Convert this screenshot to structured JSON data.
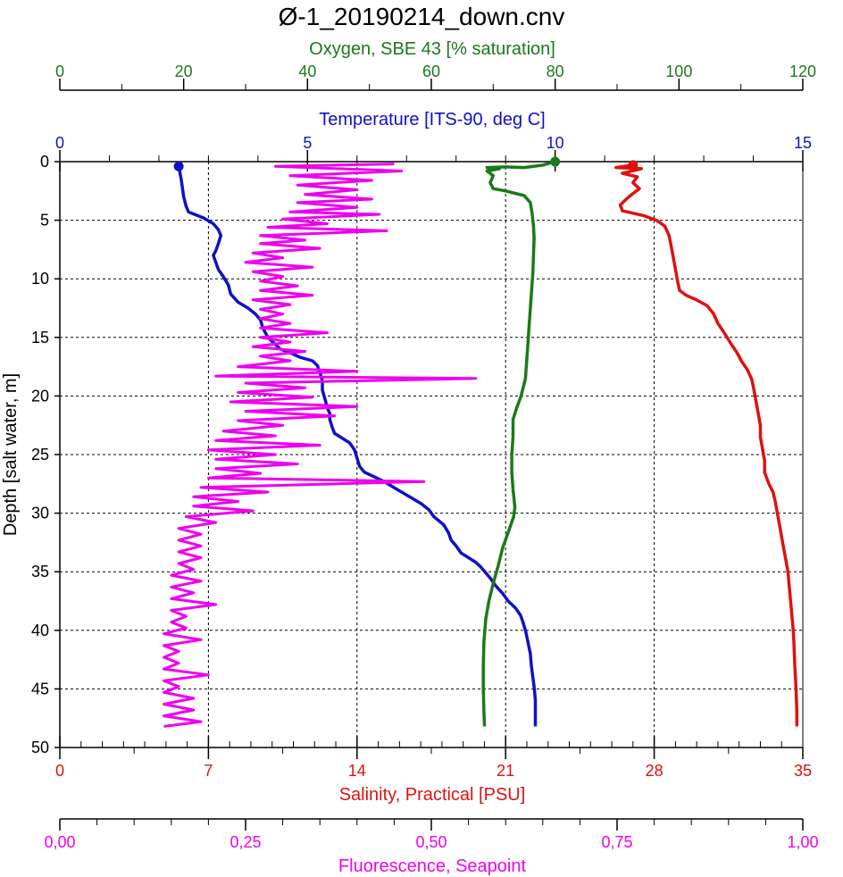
{
  "chart_data": {
    "type": "line",
    "title": "Ø-1_20190214_down.cnv",
    "y_axis": {
      "label": "Depth [salt water, m]",
      "range": [
        0,
        50
      ],
      "ticks": [
        "0",
        "5",
        "10",
        "15",
        "20",
        "25",
        "30",
        "35",
        "40",
        "45",
        "50"
      ],
      "inverted": true
    },
    "grid": true,
    "axes": {
      "oxygen": {
        "label": "Oxygen, SBE 43 [% saturation]",
        "range": [
          0,
          120
        ],
        "ticks": [
          "0",
          "20",
          "40",
          "60",
          "80",
          "100",
          "120"
        ],
        "color": "#1a7a1a",
        "position": "top"
      },
      "temperature": {
        "label": "Temperature [ITS-90, deg C]",
        "range": [
          0,
          15
        ],
        "ticks": [
          "0",
          "5",
          "10",
          "15"
        ],
        "color": "#1010c8",
        "position": "top"
      },
      "salinity": {
        "label": "Salinity, Practical [PSU]",
        "range": [
          0,
          35
        ],
        "ticks": [
          "0",
          "7",
          "14",
          "21",
          "28",
          "35"
        ],
        "color": "#e01010",
        "position": "bottom"
      },
      "fluorescence": {
        "label": "Fluorescence, Seapoint",
        "range": [
          0,
          1
        ],
        "ticks": [
          "0,00",
          "0,25",
          "0,50",
          "0,75",
          "1,00"
        ],
        "color": "#ee00ee",
        "position": "bottom"
      }
    },
    "series": [
      {
        "name": "Temperature [ITS-90, deg C]",
        "axis": "temperature",
        "color": "#1010c8",
        "points": [
          [
            2.4,
            0.4
          ],
          [
            2.45,
            1.5
          ],
          [
            2.5,
            3
          ],
          [
            2.55,
            3.8
          ],
          [
            2.6,
            4.3
          ],
          [
            2.9,
            4.8
          ],
          [
            3.1,
            5.3
          ],
          [
            3.2,
            5.8
          ],
          [
            3.25,
            6.3
          ],
          [
            3.2,
            7
          ],
          [
            3.15,
            7.6
          ],
          [
            3.1,
            8
          ],
          [
            3.15,
            8.6
          ],
          [
            3.2,
            9.2
          ],
          [
            3.3,
            9.8
          ],
          [
            3.4,
            10.5
          ],
          [
            3.45,
            11.3
          ],
          [
            3.6,
            12
          ],
          [
            3.8,
            12.5
          ],
          [
            3.95,
            13
          ],
          [
            4.05,
            13.5
          ],
          [
            4.1,
            14.2
          ],
          [
            4.2,
            15
          ],
          [
            4.35,
            15.6
          ],
          [
            4.45,
            16
          ],
          [
            4.65,
            16.3
          ],
          [
            4.85,
            16.7
          ],
          [
            5.1,
            17
          ],
          [
            5.2,
            17.4
          ],
          [
            5.25,
            18
          ],
          [
            5.3,
            18.7
          ],
          [
            5.3,
            19.5
          ],
          [
            5.35,
            20.2
          ],
          [
            5.4,
            21
          ],
          [
            5.45,
            21.5
          ],
          [
            5.45,
            22
          ],
          [
            5.5,
            22.7
          ],
          [
            5.55,
            23.2
          ],
          [
            5.7,
            23.6
          ],
          [
            5.85,
            24
          ],
          [
            5.95,
            24.6
          ],
          [
            6.0,
            25.3
          ],
          [
            6.05,
            26
          ],
          [
            6.15,
            26.5
          ],
          [
            6.35,
            26.9
          ],
          [
            6.55,
            27.3
          ],
          [
            6.7,
            27.7
          ],
          [
            6.9,
            28.2
          ],
          [
            7.1,
            28.7
          ],
          [
            7.3,
            29.2
          ],
          [
            7.45,
            29.7
          ],
          [
            7.55,
            30.3
          ],
          [
            7.75,
            31
          ],
          [
            7.85,
            31.7
          ],
          [
            7.9,
            32.3
          ],
          [
            8.0,
            32.8
          ],
          [
            8.1,
            33.4
          ],
          [
            8.25,
            33.8
          ],
          [
            8.4,
            34.2
          ],
          [
            8.5,
            34.6
          ],
          [
            8.6,
            35.1
          ],
          [
            8.7,
            35.6
          ],
          [
            8.8,
            36.2
          ],
          [
            8.95,
            36.9
          ],
          [
            9.05,
            37.5
          ],
          [
            9.2,
            38.1
          ],
          [
            9.3,
            38.7
          ],
          [
            9.35,
            39.3
          ],
          [
            9.4,
            40
          ],
          [
            9.45,
            41
          ],
          [
            9.5,
            42
          ],
          [
            9.52,
            43
          ],
          [
            9.55,
            44
          ],
          [
            9.58,
            45
          ],
          [
            9.6,
            46
          ],
          [
            9.6,
            47
          ],
          [
            9.6,
            48.2
          ]
        ]
      },
      {
        "name": "Oxygen, SBE 43 [% saturation]",
        "axis": "oxygen",
        "color": "#1a7a1a",
        "points": [
          [
            80,
            0
          ],
          [
            78,
            0.3
          ],
          [
            75,
            0.5
          ],
          [
            72,
            0.45
          ],
          [
            69,
            0.5
          ],
          [
            71,
            0.6
          ],
          [
            69,
            0.8
          ],
          [
            70,
            1.2
          ],
          [
            69.5,
            1.8
          ],
          [
            70,
            2.3
          ],
          [
            72,
            2.5
          ],
          [
            75,
            2.9
          ],
          [
            76,
            3.5
          ],
          [
            76.3,
            4.5
          ],
          [
            76.5,
            5.5
          ],
          [
            76.6,
            6.5
          ],
          [
            76.5,
            8
          ],
          [
            76.4,
            9.5
          ],
          [
            76.2,
            11
          ],
          [
            76,
            12.5
          ],
          [
            75.8,
            14
          ],
          [
            75.6,
            15.5
          ],
          [
            75.4,
            17
          ],
          [
            75.2,
            18.5
          ],
          [
            74.5,
            20
          ],
          [
            73.8,
            21
          ],
          [
            73.2,
            22
          ],
          [
            73.2,
            23.5
          ],
          [
            73,
            25
          ],
          [
            73,
            26.5
          ],
          [
            73.2,
            28
          ],
          [
            73.5,
            29.5
          ],
          [
            73.3,
            30.3
          ],
          [
            72.5,
            31.5
          ],
          [
            71.5,
            33
          ],
          [
            70.8,
            34.5
          ],
          [
            70,
            36
          ],
          [
            69.3,
            37.5
          ],
          [
            68.8,
            39
          ],
          [
            68.5,
            41
          ],
          [
            68.4,
            43
          ],
          [
            68.4,
            45
          ],
          [
            68.5,
            47
          ],
          [
            68.6,
            48.2
          ]
        ]
      },
      {
        "name": "Salinity, Practical [PSU]",
        "axis": "salinity",
        "color": "#e01010",
        "points": [
          [
            27,
            0.3
          ],
          [
            26.2,
            0.5
          ],
          [
            27.4,
            0.6
          ],
          [
            26.5,
            1.0
          ],
          [
            27.2,
            1.3
          ],
          [
            27,
            1.8
          ],
          [
            27.3,
            2.3
          ],
          [
            26.8,
            3
          ],
          [
            26.4,
            3.7
          ],
          [
            26.5,
            4.2
          ],
          [
            27,
            4.4
          ],
          [
            27.5,
            4.6
          ],
          [
            28.1,
            5
          ],
          [
            28.5,
            5.5
          ],
          [
            28.7,
            6.3
          ],
          [
            28.8,
            7.2
          ],
          [
            28.9,
            8.2
          ],
          [
            29.0,
            9.2
          ],
          [
            29.1,
            10.2
          ],
          [
            29.2,
            11.0
          ],
          [
            29.5,
            11.4
          ],
          [
            30,
            11.8
          ],
          [
            30.5,
            12.3
          ],
          [
            30.8,
            13
          ],
          [
            31,
            13.8
          ],
          [
            31.3,
            14.6
          ],
          [
            31.6,
            15.5
          ],
          [
            31.9,
            16.3
          ],
          [
            32.1,
            17
          ],
          [
            32.4,
            17.8
          ],
          [
            32.6,
            18.6
          ],
          [
            32.7,
            19.5
          ],
          [
            32.8,
            20.5
          ],
          [
            32.9,
            21.5
          ],
          [
            33.0,
            22.5
          ],
          [
            33.0,
            23.5
          ],
          [
            33.1,
            24.5
          ],
          [
            33.2,
            25.5
          ],
          [
            33.2,
            26.5
          ],
          [
            33.4,
            27.5
          ],
          [
            33.6,
            28.2
          ],
          [
            33.7,
            29
          ],
          [
            33.8,
            30
          ],
          [
            33.9,
            31
          ],
          [
            34,
            32
          ],
          [
            34.1,
            33
          ],
          [
            34.2,
            34
          ],
          [
            34.3,
            35
          ],
          [
            34.35,
            36
          ],
          [
            34.4,
            37
          ],
          [
            34.45,
            38
          ],
          [
            34.5,
            39
          ],
          [
            34.55,
            40
          ],
          [
            34.58,
            41
          ],
          [
            34.6,
            42
          ],
          [
            34.62,
            43
          ],
          [
            34.65,
            44
          ],
          [
            34.68,
            45
          ],
          [
            34.7,
            46
          ],
          [
            34.72,
            47
          ],
          [
            34.72,
            48.2
          ]
        ]
      },
      {
        "name": "Fluorescence, Seapoint",
        "axis": "fluorescence",
        "color": "#ee00ee",
        "points": [
          [
            0.45,
            0.2
          ],
          [
            0.29,
            0.4
          ],
          [
            0.46,
            0.8
          ],
          [
            0.31,
            1.2
          ],
          [
            0.42,
            1.6
          ],
          [
            0.32,
            2.0
          ],
          [
            0.4,
            2.4
          ],
          [
            0.33,
            2.8
          ],
          [
            0.42,
            3.2
          ],
          [
            0.32,
            3.5
          ],
          [
            0.4,
            3.9
          ],
          [
            0.31,
            4.3
          ],
          [
            0.43,
            4.5
          ],
          [
            0.3,
            4.9
          ],
          [
            0.36,
            5.3
          ],
          [
            0.28,
            5.6
          ],
          [
            0.44,
            5.9
          ],
          [
            0.27,
            6.3
          ],
          [
            0.33,
            6.7
          ],
          [
            0.27,
            7.0
          ],
          [
            0.35,
            7.4
          ],
          [
            0.26,
            7.8
          ],
          [
            0.3,
            8.2
          ],
          [
            0.25,
            8.6
          ],
          [
            0.34,
            9.0
          ],
          [
            0.26,
            9.4
          ],
          [
            0.3,
            9.8
          ],
          [
            0.27,
            10.2
          ],
          [
            0.32,
            10.6
          ],
          [
            0.27,
            11.0
          ],
          [
            0.34,
            11.4
          ],
          [
            0.26,
            11.8
          ],
          [
            0.31,
            12.2
          ],
          [
            0.27,
            12.6
          ],
          [
            0.3,
            13.0
          ],
          [
            0.27,
            13.4
          ],
          [
            0.31,
            13.8
          ],
          [
            0.27,
            14.2
          ],
          [
            0.36,
            14.6
          ],
          [
            0.27,
            15.0
          ],
          [
            0.31,
            15.4
          ],
          [
            0.26,
            15.8
          ],
          [
            0.33,
            16.2
          ],
          [
            0.27,
            16.6
          ],
          [
            0.31,
            17.0
          ],
          [
            0.24,
            17.5
          ],
          [
            0.4,
            17.9
          ],
          [
            0.21,
            18.3
          ],
          [
            0.56,
            18.5
          ],
          [
            0.25,
            18.9
          ],
          [
            0.33,
            19.3
          ],
          [
            0.24,
            19.7
          ],
          [
            0.34,
            20.1
          ],
          [
            0.23,
            20.5
          ],
          [
            0.4,
            20.9
          ],
          [
            0.25,
            21.3
          ],
          [
            0.37,
            21.7
          ],
          [
            0.24,
            22.1
          ],
          [
            0.3,
            22.5
          ],
          [
            0.22,
            23.0
          ],
          [
            0.29,
            23.4
          ],
          [
            0.21,
            23.8
          ],
          [
            0.35,
            24.2
          ],
          [
            0.2,
            24.6
          ],
          [
            0.29,
            25.0
          ],
          [
            0.21,
            25.4
          ],
          [
            0.32,
            25.8
          ],
          [
            0.21,
            26.2
          ],
          [
            0.27,
            26.6
          ],
          [
            0.2,
            27.0
          ],
          [
            0.49,
            27.3
          ],
          [
            0.19,
            27.8
          ],
          [
            0.28,
            28.2
          ],
          [
            0.18,
            28.6
          ],
          [
            0.24,
            29.0
          ],
          [
            0.18,
            29.4
          ],
          [
            0.26,
            29.8
          ],
          [
            0.17,
            30.3
          ],
          [
            0.21,
            30.8
          ],
          [
            0.16,
            31.3
          ],
          [
            0.19,
            31.8
          ],
          [
            0.16,
            32.3
          ],
          [
            0.19,
            32.8
          ],
          [
            0.16,
            33.3
          ],
          [
            0.19,
            33.8
          ],
          [
            0.16,
            34.3
          ],
          [
            0.18,
            34.8
          ],
          [
            0.15,
            35.3
          ],
          [
            0.19,
            35.8
          ],
          [
            0.15,
            36.3
          ],
          [
            0.18,
            36.8
          ],
          [
            0.15,
            37.3
          ],
          [
            0.21,
            37.8
          ],
          [
            0.15,
            38.3
          ],
          [
            0.17,
            38.8
          ],
          [
            0.15,
            39.3
          ],
          [
            0.17,
            39.8
          ],
          [
            0.14,
            40.3
          ],
          [
            0.19,
            40.8
          ],
          [
            0.14,
            41.3
          ],
          [
            0.16,
            41.8
          ],
          [
            0.14,
            42.3
          ],
          [
            0.16,
            42.8
          ],
          [
            0.14,
            43.3
          ],
          [
            0.2,
            43.8
          ],
          [
            0.14,
            44.3
          ],
          [
            0.16,
            44.8
          ],
          [
            0.14,
            45.3
          ],
          [
            0.18,
            45.8
          ],
          [
            0.14,
            46.3
          ],
          [
            0.18,
            46.8
          ],
          [
            0.14,
            47.3
          ],
          [
            0.19,
            47.8
          ],
          [
            0.14,
            48.2
          ]
        ]
      }
    ]
  }
}
